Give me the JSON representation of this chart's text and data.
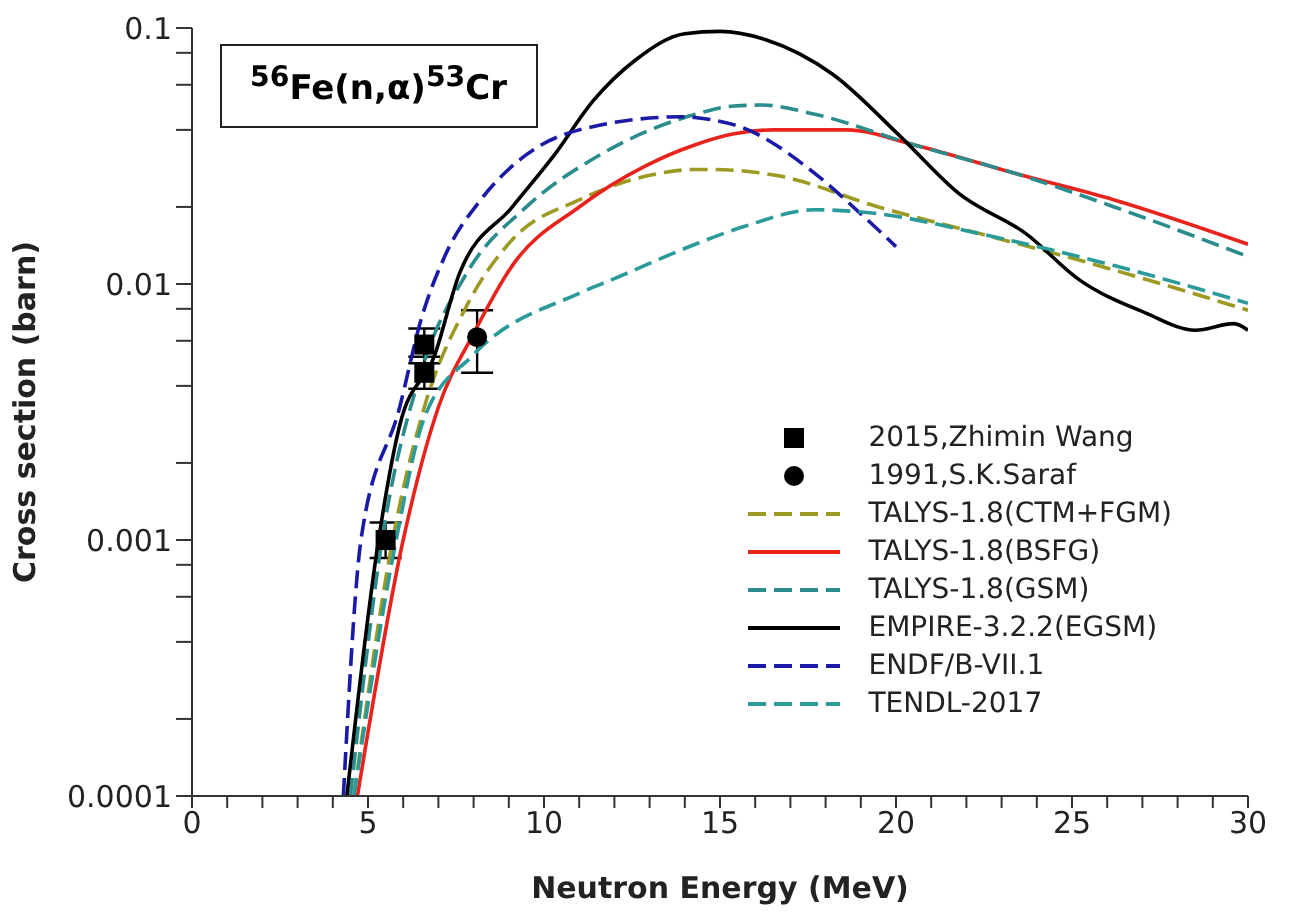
{
  "chart_data": {
    "type": "line",
    "title": "$^{56}$Fe(n,α)$^{53}$Cr",
    "xlabel": "Neutron Energy (MeV)",
    "ylabel": "Cross section (barn)",
    "log": "y",
    "grid": false,
    "legend": "bottom right",
    "xlim": [
      0,
      30
    ],
    "xticks": [
      0,
      {
        "value": 1,
        "label": null
      },
      {
        "value": 2,
        "label": null
      },
      {
        "value": 3,
        "label": null
      },
      {
        "value": 4,
        "label": null
      },
      5,
      {
        "value": 6,
        "label": null
      },
      {
        "value": 7,
        "label": null
      },
      {
        "value": 8,
        "label": null
      },
      {
        "value": 9,
        "label": null
      },
      10,
      {
        "value": 11,
        "label": null
      },
      {
        "value": 12,
        "label": null
      },
      {
        "value": 13,
        "label": null
      },
      {
        "value": 14,
        "label": null
      },
      15,
      {
        "value": 16,
        "label": null
      },
      {
        "value": 17,
        "label": null
      },
      {
        "value": 18,
        "label": null
      },
      {
        "value": 19,
        "label": null
      },
      20,
      {
        "value": 21,
        "label": null
      },
      {
        "value": 22,
        "label": null
      },
      {
        "value": 23,
        "label": null
      },
      {
        "value": 24,
        "label": null
      },
      25,
      {
        "value": 26,
        "label": null
      },
      {
        "value": 27,
        "label": null
      },
      {
        "value": 28,
        "label": null
      },
      {
        "value": 29,
        "label": null
      },
      30
    ],
    "ylim": [
      0.0001,
      0.1
    ],
    "yticks": [
      0.0001,
      {
        "value": 0.0002,
        "label": null
      },
      {
        "value": 0.0004,
        "label": null
      },
      {
        "value": 0.0006,
        "label": null
      },
      {
        "value": 0.0008,
        "label": null
      },
      0.001,
      {
        "value": 0.002,
        "label": null
      },
      {
        "value": 0.004,
        "label": null
      },
      {
        "value": 0.006,
        "label": null
      },
      {
        "value": 0.008,
        "label": null
      },
      0.01,
      {
        "value": 0.02,
        "label": null
      },
      {
        "value": 0.04,
        "label": null
      },
      {
        "value": 0.06,
        "label": null
      },
      {
        "value": 0.08,
        "label": null
      },
      0.1
    ],
    "series": [
      {
        "name": "2015,Zhimin Wang",
        "type": "scatter",
        "marker": "square",
        "color": "#000000",
        "x": [
          5.5,
          6.6,
          6.6
        ],
        "values": [
          0.001,
          0.0058,
          0.0045
        ],
        "errors": [
          [
            0.00085,
            0.00117
          ],
          [
            0.0049,
            0.0067
          ],
          [
            0.0039,
            0.0052
          ]
        ]
      },
      {
        "name": "1991,S.K.Saraf",
        "type": "scatter",
        "marker": "circle",
        "color": "#000000",
        "x": [
          8.1
        ],
        "values": [
          0.0062
        ],
        "errors": [
          [
            0.0045,
            0.0079
          ]
        ]
      },
      {
        "name": "TALYS-1.8(CTM+FGM)",
        "color": "#9c9a22",
        "line_style": "dashed",
        "x": [
          4.6,
          5.7,
          6.6,
          7.8,
          9.1,
          11,
          12.9,
          14.3,
          14.8,
          16.7,
          19.5,
          22.4,
          25.2,
          30
        ],
        "values": [
          0.0001,
          0.001,
          0.0033,
          0.0082,
          0.0149,
          0.0213,
          0.0264,
          0.028,
          0.028,
          0.0264,
          0.02,
          0.0157,
          0.0124,
          0.0079
        ]
      },
      {
        "name": "TALYS-1.8(BSFG)",
        "color": "#e8231c",
        "line_style": "solid",
        "x": [
          4.7,
          6.0,
          7.0,
          8.0,
          9.1,
          11,
          12.9,
          14.3,
          15.4,
          16.5,
          18.6,
          20.5,
          23.4,
          26.2,
          30
        ],
        "values": [
          0.0001,
          0.001,
          0.0033,
          0.0064,
          0.0118,
          0.02,
          0.029,
          0.035,
          0.0386,
          0.04,
          0.04,
          0.035,
          0.027,
          0.0213,
          0.0143
        ]
      },
      {
        "name": "TALYS-1.8(GSM)",
        "color": "#2a8c8c",
        "line_style": "dashed",
        "x": [
          4.5,
          5.4,
          6.5,
          7.8,
          9.5,
          11.6,
          14.3,
          15.4,
          16.2,
          17.7,
          20.5,
          23.4,
          26.2,
          30
        ],
        "values": [
          0.0001,
          0.001,
          0.0045,
          0.011,
          0.02,
          0.032,
          0.046,
          0.0496,
          0.05,
          0.046,
          0.035,
          0.027,
          0.02,
          0.0128
        ]
      },
      {
        "name": "EMPIRE-3.2.2(EGSM)",
        "color": "#000000",
        "line_style": "solid",
        "x": [
          4.4,
          5.3,
          5.9,
          6.9,
          7.6,
          9.1,
          10.3,
          11.4,
          12.6,
          14,
          15,
          16.3,
          18.2,
          20.1,
          21.8,
          23.7,
          25.2,
          27.1,
          28.5,
          29.6,
          30
        ],
        "values": [
          0.0001,
          0.001,
          0.0028,
          0.0053,
          0.011,
          0.02,
          0.032,
          0.052,
          0.075,
          0.095,
          0.097,
          0.09,
          0.066,
          0.038,
          0.0225,
          0.0157,
          0.0104,
          0.0077,
          0.0066,
          0.007,
          0.0066
        ]
      },
      {
        "name": "ENDF/B-VII.1",
        "color": "#1a1aa6",
        "line_style": "dashed",
        "x": [
          4.3,
          4.8,
          5.9,
          6.5,
          7.2,
          8.2,
          9.5,
          11,
          13.9,
          14.8,
          15.6,
          17.7,
          19,
          20
        ],
        "values": [
          0.0001,
          0.001,
          0.0033,
          0.0072,
          0.013,
          0.0213,
          0.032,
          0.04,
          0.045,
          0.0437,
          0.041,
          0.027,
          0.0188,
          0.014
        ]
      },
      {
        "name": "TENDL-2017",
        "color": "#2a9a9a",
        "line_style": "dashed",
        "x": [
          4.6,
          5.8,
          6.6,
          8.0,
          11,
          12,
          14.3,
          15.7,
          17.7,
          19.5,
          22.4,
          26.2,
          30
        ],
        "values": [
          0.0001,
          0.001,
          0.003,
          0.0053,
          0.0092,
          0.0105,
          0.0143,
          0.0168,
          0.0195,
          0.0188,
          0.0157,
          0.0118,
          0.0084
        ]
      }
    ]
  }
}
